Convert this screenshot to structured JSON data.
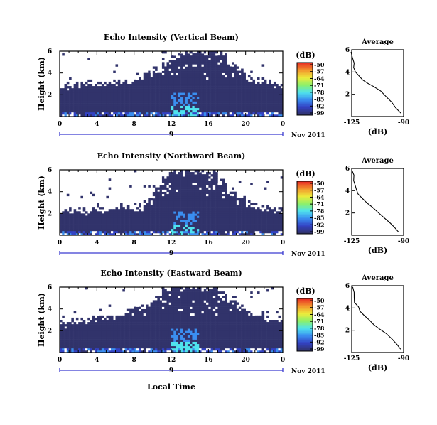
{
  "figure": {
    "xlabel": "Local Time",
    "date_label": "Nov 2011",
    "day_marker": "9",
    "colorbar_unit": "(dB)",
    "avg_title": "Average",
    "avg_xlabel": "(dB)"
  },
  "colors": {
    "scale": [
      "#31336b",
      "#3342c4",
      "#3a8ef0",
      "#4fe3ee",
      "#8cf06a",
      "#ecec3c",
      "#f39a2e",
      "#e83224"
    ]
  },
  "chart_data": [
    {
      "type": "heatmap",
      "title": "Echo Intensity (Vertical Beam)",
      "ylabel": "Height (km)",
      "x_ticks": [
        "0",
        "4",
        "8",
        "12",
        "16",
        "20",
        "0"
      ],
      "xlim": [
        0,
        24
      ],
      "y_ticks": [
        "2",
        "4",
        "6"
      ],
      "ylim": [
        0,
        6
      ],
      "colorbar_ticks": [
        "-50",
        "-57",
        "-64",
        "-71",
        "-78",
        "-85",
        "-92",
        "-99"
      ],
      "clim": [
        -99,
        -50
      ],
      "echo_top_km": [
        2.8,
        2.9,
        3.0,
        3.0,
        3.1,
        3.1,
        3.2,
        3.4,
        3.6,
        4.0,
        4.4,
        5.0,
        5.6,
        6.0,
        6.0,
        6.0,
        6.0,
        5.8,
        5.0,
        4.2,
        3.5,
        3.3,
        3.1,
        3.0
      ],
      "strong_echo_hours": [
        12,
        13,
        14
      ]
    },
    {
      "type": "line",
      "title": "Average",
      "xlabel": "(dB)",
      "x_ticks": [
        "-125",
        "-90"
      ],
      "xlim": [
        -125,
        -90
      ],
      "y_ticks": [
        "2",
        "4",
        "6"
      ],
      "ylim": [
        0,
        6
      ],
      "x": [
        -92,
        -95,
        -98,
        -102,
        -106,
        -110,
        -114,
        -117,
        -120,
        -122,
        -123,
        -124,
        -124,
        -125
      ],
      "y": [
        0.3,
        0.8,
        1.3,
        1.8,
        2.3,
        2.7,
        3.0,
        3.3,
        3.6,
        4.0,
        4.4,
        4.8,
        5.3,
        5.8
      ]
    },
    {
      "type": "heatmap",
      "title": "Echo Intensity (Northward Beam)",
      "ylabel": "Height (km)",
      "x_ticks": [
        "0",
        "4",
        "8",
        "12",
        "16",
        "20",
        "0"
      ],
      "xlim": [
        0,
        24
      ],
      "y_ticks": [
        "2",
        "4",
        "6"
      ],
      "ylim": [
        0,
        6
      ],
      "colorbar_ticks": [
        "-50",
        "-57",
        "-64",
        "-71",
        "-78",
        "-85",
        "-92",
        "-99"
      ],
      "clim": [
        -99,
        -50
      ],
      "echo_top_km": [
        2.1,
        2.2,
        2.2,
        2.3,
        2.4,
        2.5,
        2.5,
        2.6,
        2.6,
        3.0,
        4.5,
        5.6,
        6.0,
        6.0,
        6.0,
        6.0,
        5.9,
        5.0,
        4.0,
        3.2,
        2.8,
        2.6,
        2.5,
        2.4
      ],
      "strong_echo_hours": [
        12,
        13,
        14
      ]
    },
    {
      "type": "line",
      "title": "Average",
      "xlabel": "(dB)",
      "x_ticks": [
        "-125",
        "-90"
      ],
      "xlim": [
        -125,
        -90
      ],
      "y_ticks": [
        "2",
        "4",
        "6"
      ],
      "ylim": [
        0,
        6
      ],
      "x": [
        -93,
        -96,
        -99,
        -103,
        -107,
        -111,
        -115,
        -118,
        -121,
        -122,
        -123,
        -124,
        -124,
        -125
      ],
      "y": [
        0.3,
        0.7,
        1.1,
        1.6,
        2.1,
        2.5,
        2.9,
        3.3,
        3.7,
        4.1,
        4.5,
        4.9,
        5.4,
        5.9
      ]
    },
    {
      "type": "heatmap",
      "title": "Echo Intensity (Eastward Beam)",
      "ylabel": "Height (km)",
      "x_ticks": [
        "0",
        "4",
        "8",
        "12",
        "16",
        "20",
        "0"
      ],
      "xlim": [
        0,
        24
      ],
      "y_ticks": [
        "2",
        "4",
        "6"
      ],
      "ylim": [
        0,
        6
      ],
      "colorbar_ticks": [
        "-50",
        "-57",
        "-64",
        "-71",
        "-78",
        "-85",
        "-92",
        "-99"
      ],
      "clim": [
        -99,
        -50
      ],
      "echo_top_km": [
        2.5,
        2.7,
        2.9,
        3.0,
        3.2,
        3.4,
        3.6,
        3.8,
        4.0,
        4.4,
        5.0,
        5.7,
        6.0,
        6.0,
        6.0,
        6.0,
        6.0,
        5.6,
        4.8,
        4.2,
        3.8,
        3.5,
        3.2,
        3.0
      ],
      "strong_echo_hours": [
        12,
        13,
        14
      ]
    },
    {
      "type": "line",
      "title": "Average",
      "xlabel": "(dB)",
      "x_ticks": [
        "-125",
        "-90"
      ],
      "xlim": [
        -125,
        -90
      ],
      "y_ticks": [
        "2",
        "4",
        "6"
      ],
      "ylim": [
        0,
        6
      ],
      "x": [
        -92,
        -95,
        -98,
        -102,
        -106,
        -110,
        -113,
        -116,
        -119,
        -121,
        -123,
        -124,
        -124,
        -125
      ],
      "y": [
        0.3,
        0.7,
        1.2,
        1.7,
        2.1,
        2.5,
        2.9,
        3.3,
        3.7,
        4.1,
        4.5,
        4.9,
        5.4,
        5.9
      ]
    }
  ]
}
